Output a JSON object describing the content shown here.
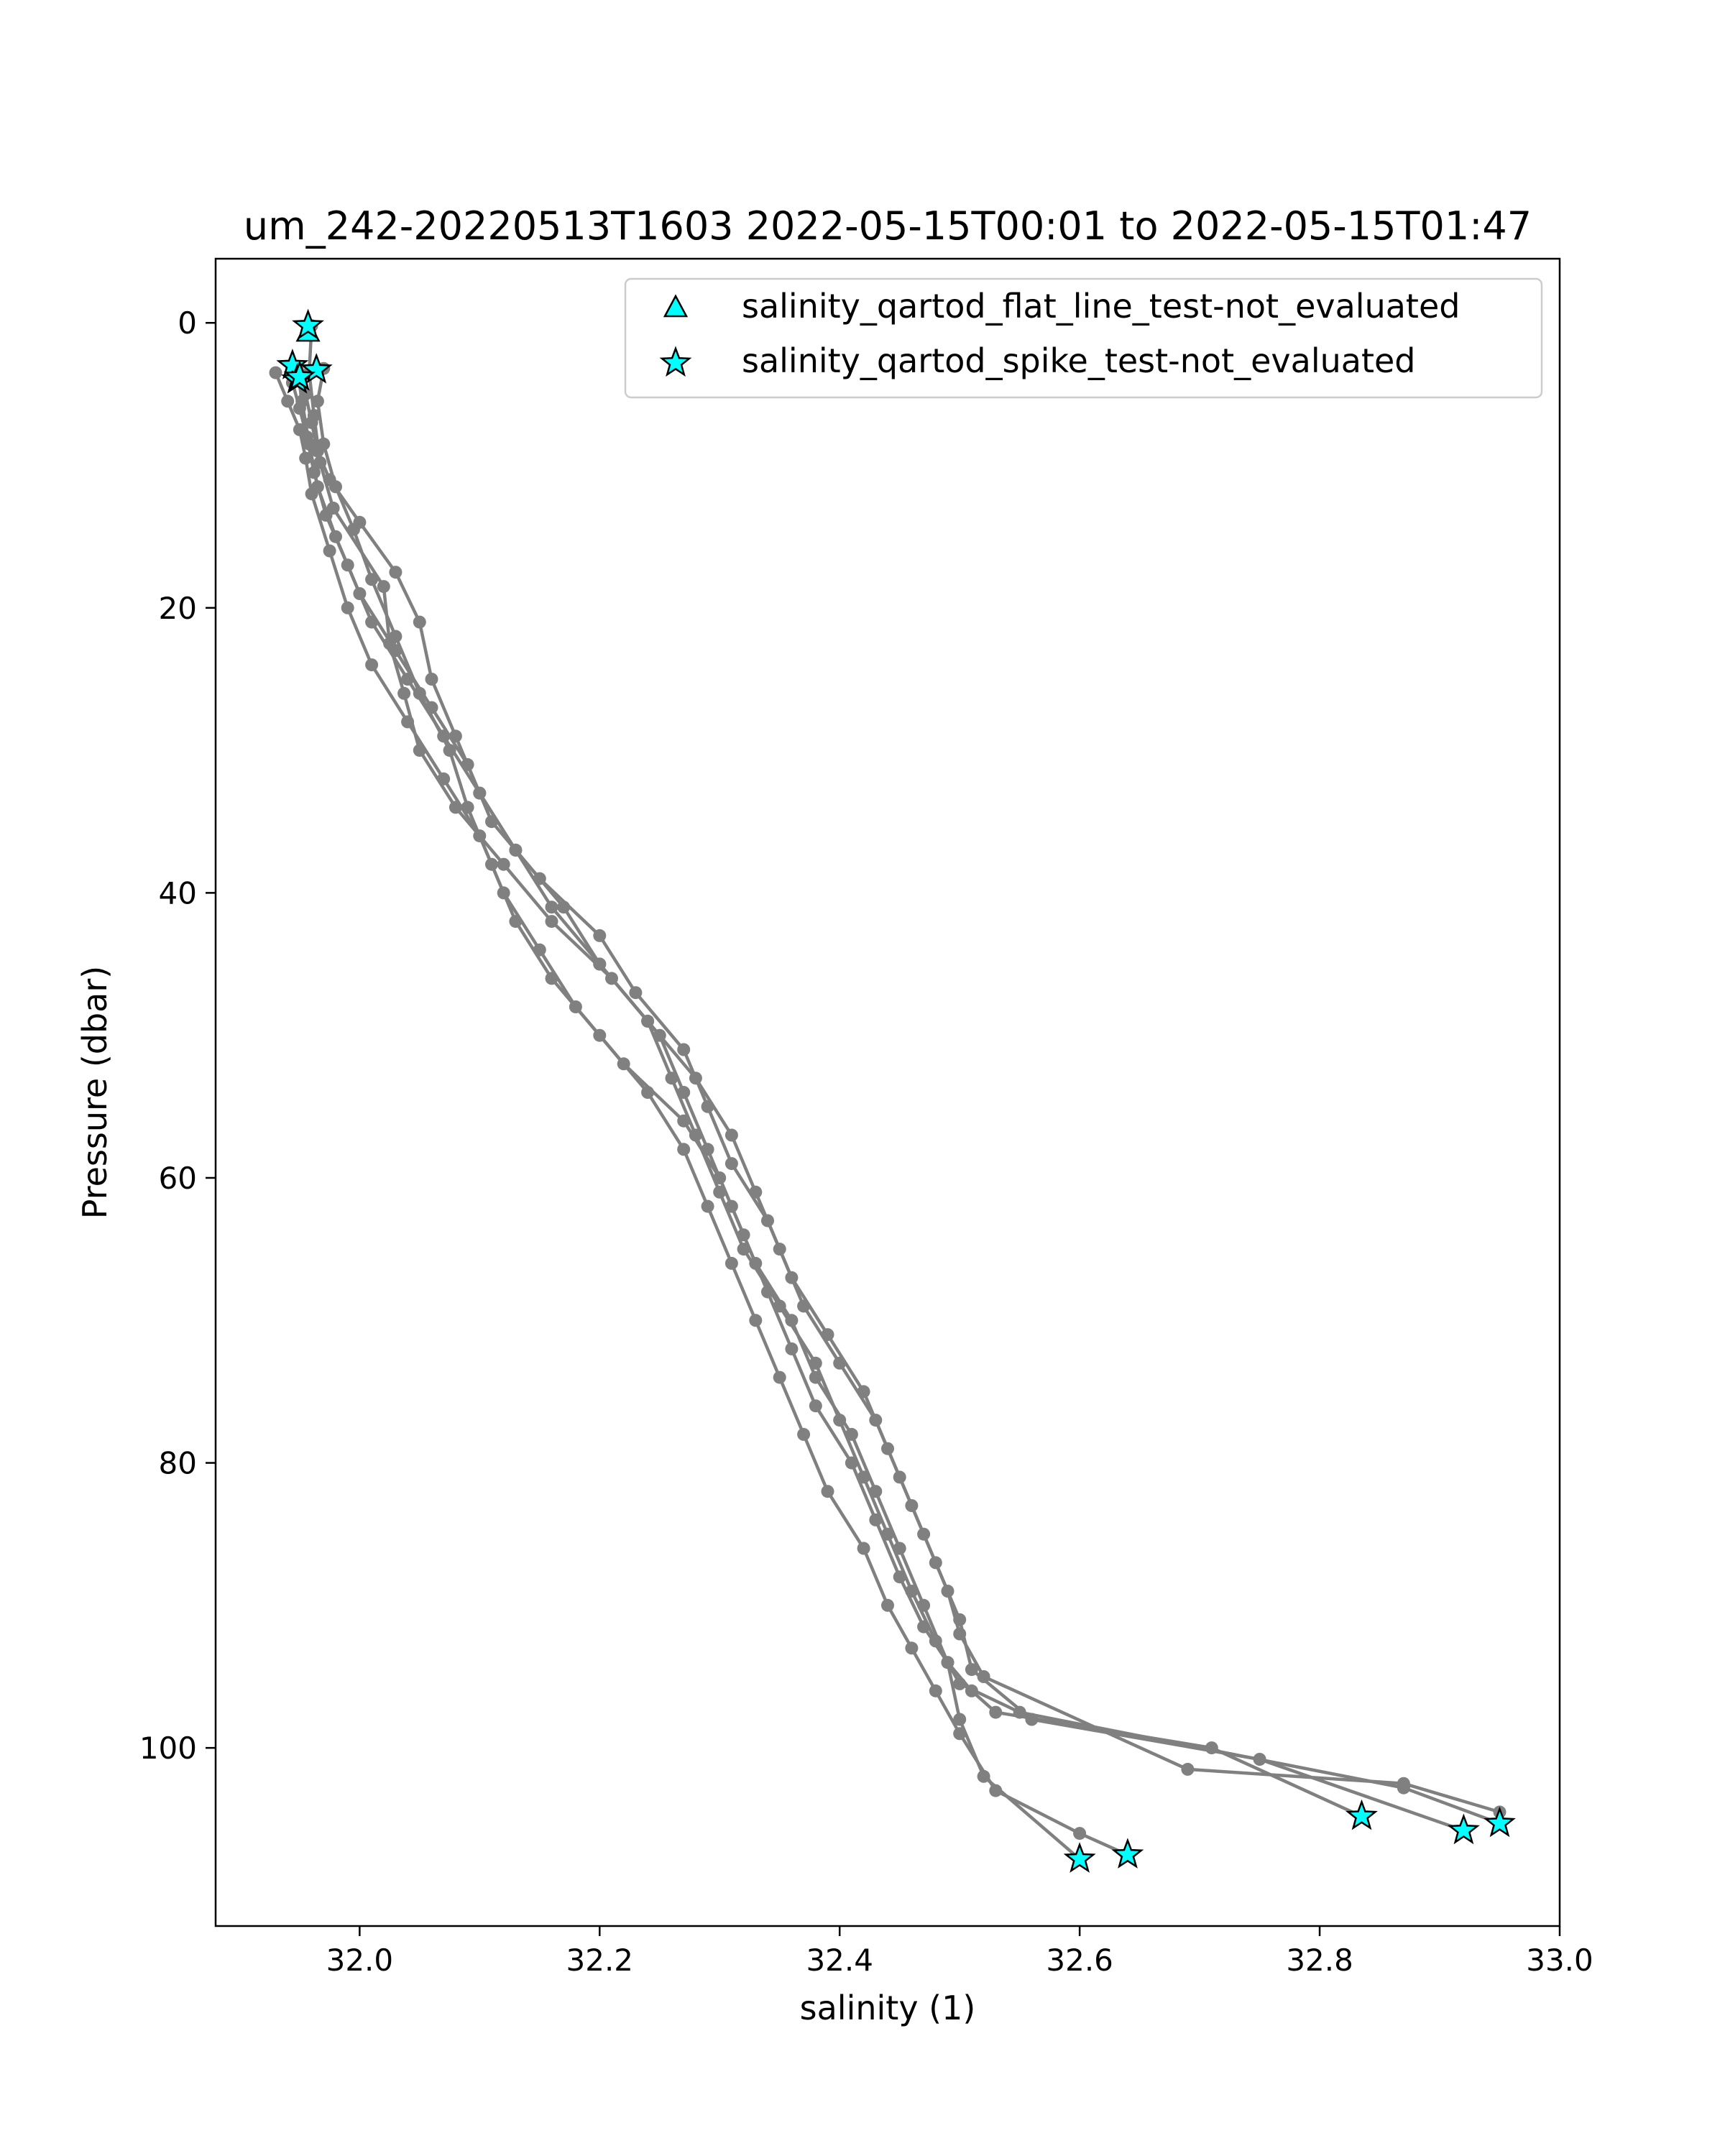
{
  "chart_data": {
    "type": "scatter",
    "title": "um_242-20220513T1603 2022-05-15T00:01 to 2022-05-15T01:47",
    "xlabel": "salinity (1)",
    "ylabel": "Pressure (dbar)",
    "xlim": [
      31.88,
      33.0
    ],
    "ylim": [
      112.5,
      -4.5
    ],
    "y_inverted": true,
    "xticks": [
      32.0,
      32.2,
      32.4,
      32.6,
      32.8,
      33.0
    ],
    "xtick_labels": [
      "32.0",
      "32.2",
      "32.4",
      "32.6",
      "32.8",
      "33.0"
    ],
    "yticks": [
      0,
      20,
      40,
      60,
      80,
      100
    ],
    "ytick_labels": [
      "0",
      "20",
      "40",
      "60",
      "80",
      "100"
    ],
    "grid": false,
    "legend_position": "top-right",
    "colors": {
      "profile_line": "#808080",
      "flag_marker_fill": "#00ffff",
      "flag_marker_edge": "#000000"
    },
    "legend": [
      {
        "label": "salinity_qartod_flat_line_test-not_evaluated",
        "marker": "triangle"
      },
      {
        "label": "salinity_qartod_spike_test-not_evaluated",
        "marker": "star"
      }
    ],
    "profiles": [
      {
        "x": [
          31.96,
          31.958,
          31.962,
          31.967,
          31.978,
          32.02,
          32.025,
          32.037,
          32.05,
          32.08,
          32.12,
          32.16,
          32.21,
          32.25,
          32.27,
          32.29,
          32.31,
          32.33,
          32.36,
          32.38,
          32.41,
          32.43,
          32.45,
          32.47,
          32.49,
          32.5,
          32.52,
          32.6
        ],
        "y": [
          0.2,
          3.5,
          6.5,
          9.8,
          13,
          18.5,
          22.5,
          26,
          30,
          34,
          38,
          42,
          46,
          50,
          54,
          58,
          62,
          66,
          70,
          74,
          78,
          82,
          86,
          90,
          94,
          98,
          102,
          107.8
        ]
      },
      {
        "x": [
          31.948,
          31.952,
          31.958,
          31.965,
          31.98,
          32.0,
          32.03,
          32.06,
          32.09,
          32.11,
          32.15,
          32.2,
          32.23,
          32.27,
          32.29,
          32.31,
          32.34,
          32.36,
          32.39,
          32.42,
          32.44,
          32.46,
          32.48,
          32.5,
          32.51,
          32.56,
          32.75,
          32.92
        ],
        "y": [
          3.2,
          5.5,
          8.5,
          11.5,
          15,
          19,
          23,
          27,
          31,
          35,
          39,
          43,
          47,
          51,
          55,
          59,
          63,
          67,
          71,
          75,
          79,
          83,
          87,
          91,
          94.5,
          98,
          100.8,
          105.8
        ]
      },
      {
        "x": [
          31.944,
          31.95,
          31.956,
          31.962,
          31.972,
          31.99,
          32.01,
          32.04,
          32.07,
          32.1,
          32.13,
          32.17,
          32.2,
          32.24,
          32.26,
          32.28,
          32.3,
          32.32,
          32.35,
          32.38,
          32.4,
          32.42,
          32.44,
          32.46,
          32.48,
          32.5,
          32.55,
          32.87,
          32.95
        ],
        "y": [
          4.2,
          6,
          8,
          10.5,
          13.5,
          17,
          21,
          25,
          29,
          33,
          37,
          41,
          45,
          49,
          53,
          57,
          61,
          65,
          69,
          73,
          77,
          81,
          85,
          89,
          92.5,
          95.5,
          97.5,
          102.8,
          105.3
        ]
      },
      {
        "x": [
          31.97,
          31.965,
          31.97,
          31.98,
          31.995,
          32.01,
          32.03,
          32.05,
          32.075,
          32.09,
          32.11,
          32.13,
          32.16,
          32.2,
          32.24,
          32.27,
          32.29,
          32.31,
          32.33,
          32.35,
          32.37,
          32.39,
          32.42,
          32.44,
          32.46,
          32.48,
          32.5,
          32.53,
          32.6,
          32.64
        ],
        "y": [
          3.2,
          5.5,
          8.5,
          11.5,
          14.5,
          18,
          22,
          26,
          30,
          34,
          38,
          42,
          46,
          50,
          54,
          58,
          62,
          66,
          70,
          74,
          78,
          82,
          86,
          90,
          93,
          96,
          99,
          103,
          106,
          107.5
        ]
      },
      {
        "x": [
          31.93,
          31.94,
          31.95,
          31.955,
          31.96,
          31.975,
          31.99,
          32.01,
          32.04,
          32.07,
          32.1,
          32.12,
          32.15,
          32.18,
          32.22,
          32.27,
          32.3,
          32.32,
          32.34,
          32.36,
          32.38,
          32.41,
          32.43,
          32.45,
          32.47,
          32.49,
          32.51,
          32.53,
          32.71,
          32.835
        ],
        "y": [
          3.5,
          5.5,
          7.5,
          9.5,
          12,
          16,
          20,
          24,
          28,
          32,
          36,
          40,
          44,
          48,
          52,
          56,
          60,
          64,
          68,
          72,
          76,
          80,
          84,
          88,
          91.5,
          94,
          96,
          97.5,
          100,
          104.8
        ]
      },
      {
        "x": [
          31.955,
          31.96,
          31.965,
          31.975,
          32.0,
          32.03,
          32.05,
          32.06,
          32.08,
          32.1,
          32.13,
          32.16,
          32.2,
          32.24,
          32.28,
          32.31,
          32.33,
          32.35,
          32.37,
          32.4,
          32.43,
          32.45,
          32.47,
          32.49,
          32.5,
          32.52,
          32.69,
          32.87,
          32.95
        ],
        "y": [
          5,
          7,
          9,
          11,
          14,
          17.5,
          21,
          25,
          29,
          33,
          37,
          41,
          45,
          49,
          53,
          57,
          61,
          65,
          69,
          73,
          77,
          81,
          85,
          89,
          92,
          95,
          101.5,
          102.5,
          104.5
        ]
      }
    ],
    "spike_not_evaluated": {
      "x": [
        31.957,
        31.944,
        31.948,
        31.964,
        31.95,
        32.6,
        32.64,
        32.835,
        32.92,
        32.95
      ],
      "y": [
        0.2,
        3.0,
        4.0,
        3.3,
        3.8,
        107.8,
        107.5,
        104.8,
        105.8,
        105.3
      ]
    },
    "flat_line_not_evaluated": {
      "x": [
        31.957
      ],
      "y": [
        0.6
      ]
    }
  }
}
